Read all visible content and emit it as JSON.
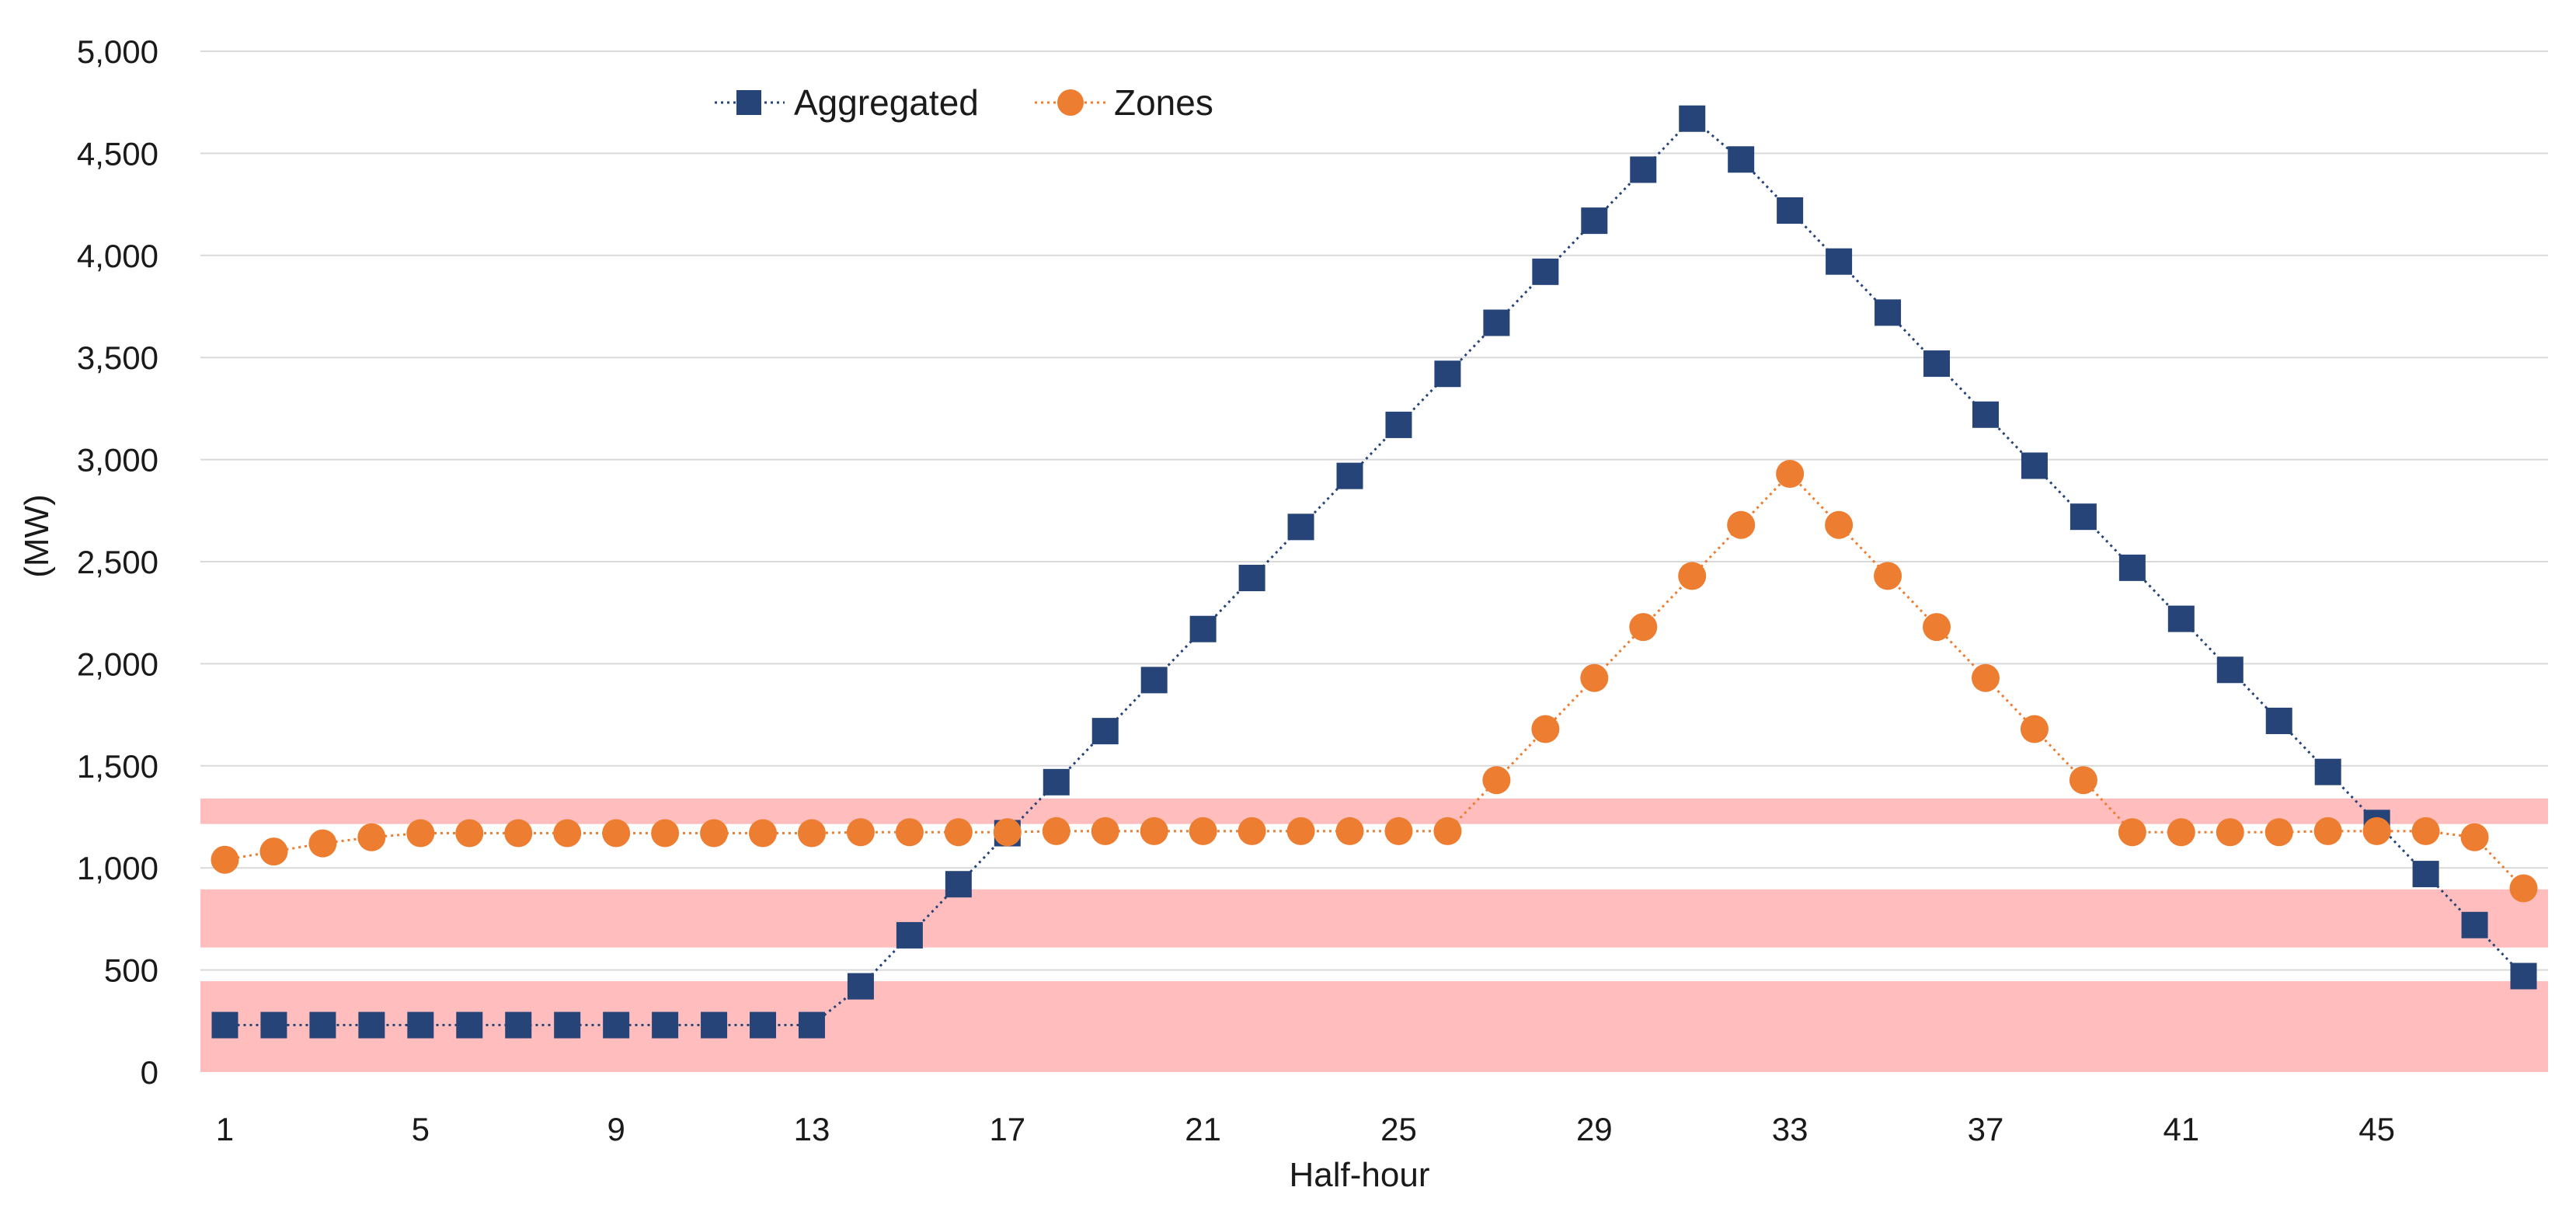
{
  "chart_data": {
    "type": "line",
    "title": "",
    "xlabel": "Half-hour",
    "ylabel": "(MW)",
    "xlim": [
      0.5,
      48.5
    ],
    "ylim": [
      0,
      5000
    ],
    "y_ticks": [
      0,
      500,
      1000,
      1500,
      2000,
      2500,
      3000,
      3500,
      4000,
      4500,
      5000
    ],
    "y_tick_labels": [
      "0",
      "500",
      "1,000",
      "1,500",
      "2,000",
      "2,500",
      "3,000",
      "3,500",
      "4,000",
      "4,500",
      "5,000"
    ],
    "x_ticks": [
      1,
      5,
      9,
      13,
      17,
      21,
      25,
      29,
      33,
      37,
      41,
      45
    ],
    "x_tick_labels": [
      "1",
      "5",
      "9",
      "13",
      "17",
      "21",
      "25",
      "29",
      "33",
      "37",
      "41",
      "45"
    ],
    "grid": true,
    "legend_position": "top-left",
    "bands": [
      {
        "y0": 1215,
        "y1": 1340,
        "color": "#ffbdbd"
      },
      {
        "y0": 610,
        "y1": 895,
        "color": "#ffbdbd"
      },
      {
        "y0": 0,
        "y1": 445,
        "color": "#ffbdbd"
      }
    ],
    "x": [
      1,
      2,
      3,
      4,
      5,
      6,
      7,
      8,
      9,
      10,
      11,
      12,
      13,
      14,
      15,
      16,
      17,
      18,
      19,
      20,
      21,
      22,
      23,
      24,
      25,
      26,
      27,
      28,
      29,
      30,
      31,
      32,
      33,
      34,
      35,
      36,
      37,
      38,
      39,
      40,
      41,
      42,
      43,
      44,
      45,
      46,
      47,
      48
    ],
    "series": [
      {
        "name": "Aggregated",
        "marker": "square",
        "color": "#264478",
        "values": [
          230,
          230,
          230,
          230,
          230,
          230,
          230,
          230,
          230,
          230,
          230,
          230,
          230,
          420,
          670,
          920,
          1170,
          1420,
          1670,
          1920,
          2170,
          2420,
          2670,
          2920,
          3170,
          3420,
          3670,
          3920,
          4170,
          4420,
          4670,
          4470,
          4220,
          3970,
          3720,
          3470,
          3220,
          2970,
          2720,
          2470,
          2220,
          1970,
          1720,
          1470,
          1220,
          970,
          720,
          470
        ]
      },
      {
        "name": "Zones",
        "marker": "circle",
        "color": "#ed7d31",
        "values": [
          1040,
          1080,
          1120,
          1150,
          1170,
          1170,
          1170,
          1170,
          1170,
          1170,
          1170,
          1170,
          1170,
          1175,
          1175,
          1175,
          1175,
          1180,
          1180,
          1180,
          1180,
          1180,
          1180,
          1180,
          1180,
          1180,
          1430,
          1680,
          1930,
          2180,
          2430,
          2680,
          2930,
          2680,
          2430,
          2180,
          1930,
          1680,
          1430,
          1175,
          1175,
          1175,
          1175,
          1180,
          1180,
          1180,
          1150,
          900
        ]
      }
    ]
  }
}
